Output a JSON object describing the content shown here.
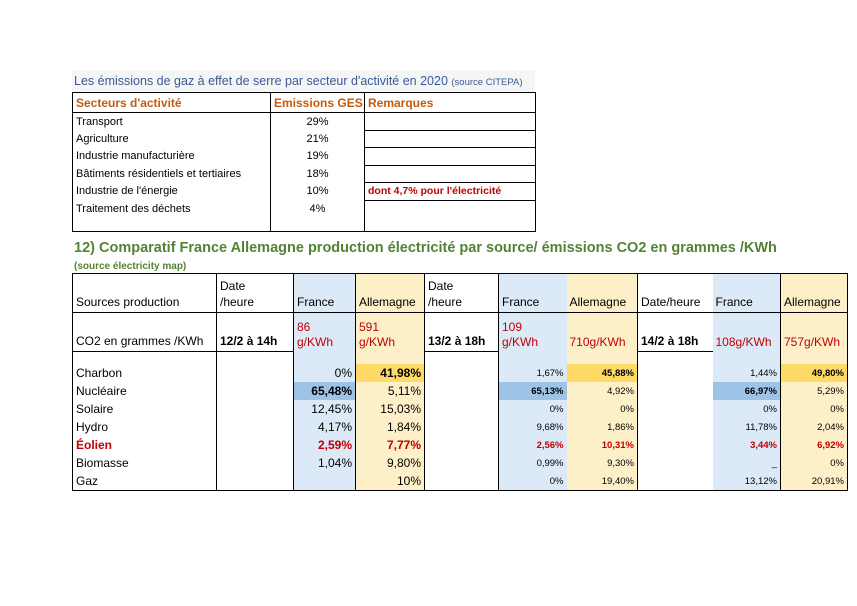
{
  "table1": {
    "title": "Les émissions de gaz à effet de serre par secteur d'activité en 2020",
    "source": "(source CITEPA)",
    "headers": [
      "Secteurs d'activité",
      "Emissions GES",
      "Remarques"
    ],
    "rows": [
      {
        "sector": "Transport",
        "ges": "29%",
        "remark": ""
      },
      {
        "sector": "Agriculture",
        "ges": "21%",
        "remark": ""
      },
      {
        "sector": "Industrie manufacturière",
        "ges": "19%",
        "remark": ""
      },
      {
        "sector": "Bâtiments résidentiels et tertiaires",
        "ges": "18%",
        "remark": ""
      },
      {
        "sector": "Industrie de l'énergie",
        "ges": "10%",
        "remark": "dont 4,7% pour l'électricité"
      },
      {
        "sector": "Traitement des déchets",
        "ges": "4%",
        "remark": ""
      }
    ]
  },
  "heading2": {
    "title": "12) Comparatif France Allemagne production électricité par source/ émissions CO2 en grammes /KWh",
    "source": "(source électricity map)"
  },
  "table2": {
    "h_sources": "Sources production",
    "h_date_line1": "Date",
    "h_date_line2": "/heure",
    "h_datetime": "Date/heure",
    "h_france": "France",
    "h_allemagne": "Allemagne",
    "co2_label": "CO2 en grammes /KWh",
    "dates": [
      "12/2 à 14h",
      "13/2 à 18h",
      "14/2 à 18h"
    ],
    "co2_fr": [
      "86",
      "109",
      "108g/KWh"
    ],
    "co2_de": [
      "591",
      "710g/KWh",
      "757g/KWh"
    ],
    "unit": "g/KWh",
    "rows": [
      {
        "source": "Charbon",
        "v": [
          "0%",
          "41,98%",
          "1,67%",
          "45,88%",
          "1,44%",
          "49,80%"
        ]
      },
      {
        "source": "Nucléaire",
        "v": [
          "65,48%",
          "5,11%",
          "65,13%",
          "4,92%",
          "66,97%",
          "5,29%"
        ]
      },
      {
        "source": "Solaire",
        "v": [
          "12,45%",
          "15,03%",
          "0%",
          "0%",
          "0%",
          "0%"
        ]
      },
      {
        "source": "Hydro",
        "v": [
          "4,17%",
          "1,84%",
          "9,68%",
          "1,86%",
          "11,78%",
          "2,04%"
        ]
      },
      {
        "source": "Éolien",
        "v": [
          "2,59%",
          "7,77%",
          "2,56%",
          "10,31%",
          "3,44%",
          "6,92%"
        ]
      },
      {
        "source": "Biomasse",
        "v": [
          "1,04%",
          "9,80%",
          "0,99%",
          "9,30%",
          "_",
          "0%"
        ]
      },
      {
        "source": "Gaz",
        "v": [
          "",
          "10%",
          "0%",
          "19,40%",
          "13,12%",
          "20,91%"
        ]
      }
    ]
  }
}
